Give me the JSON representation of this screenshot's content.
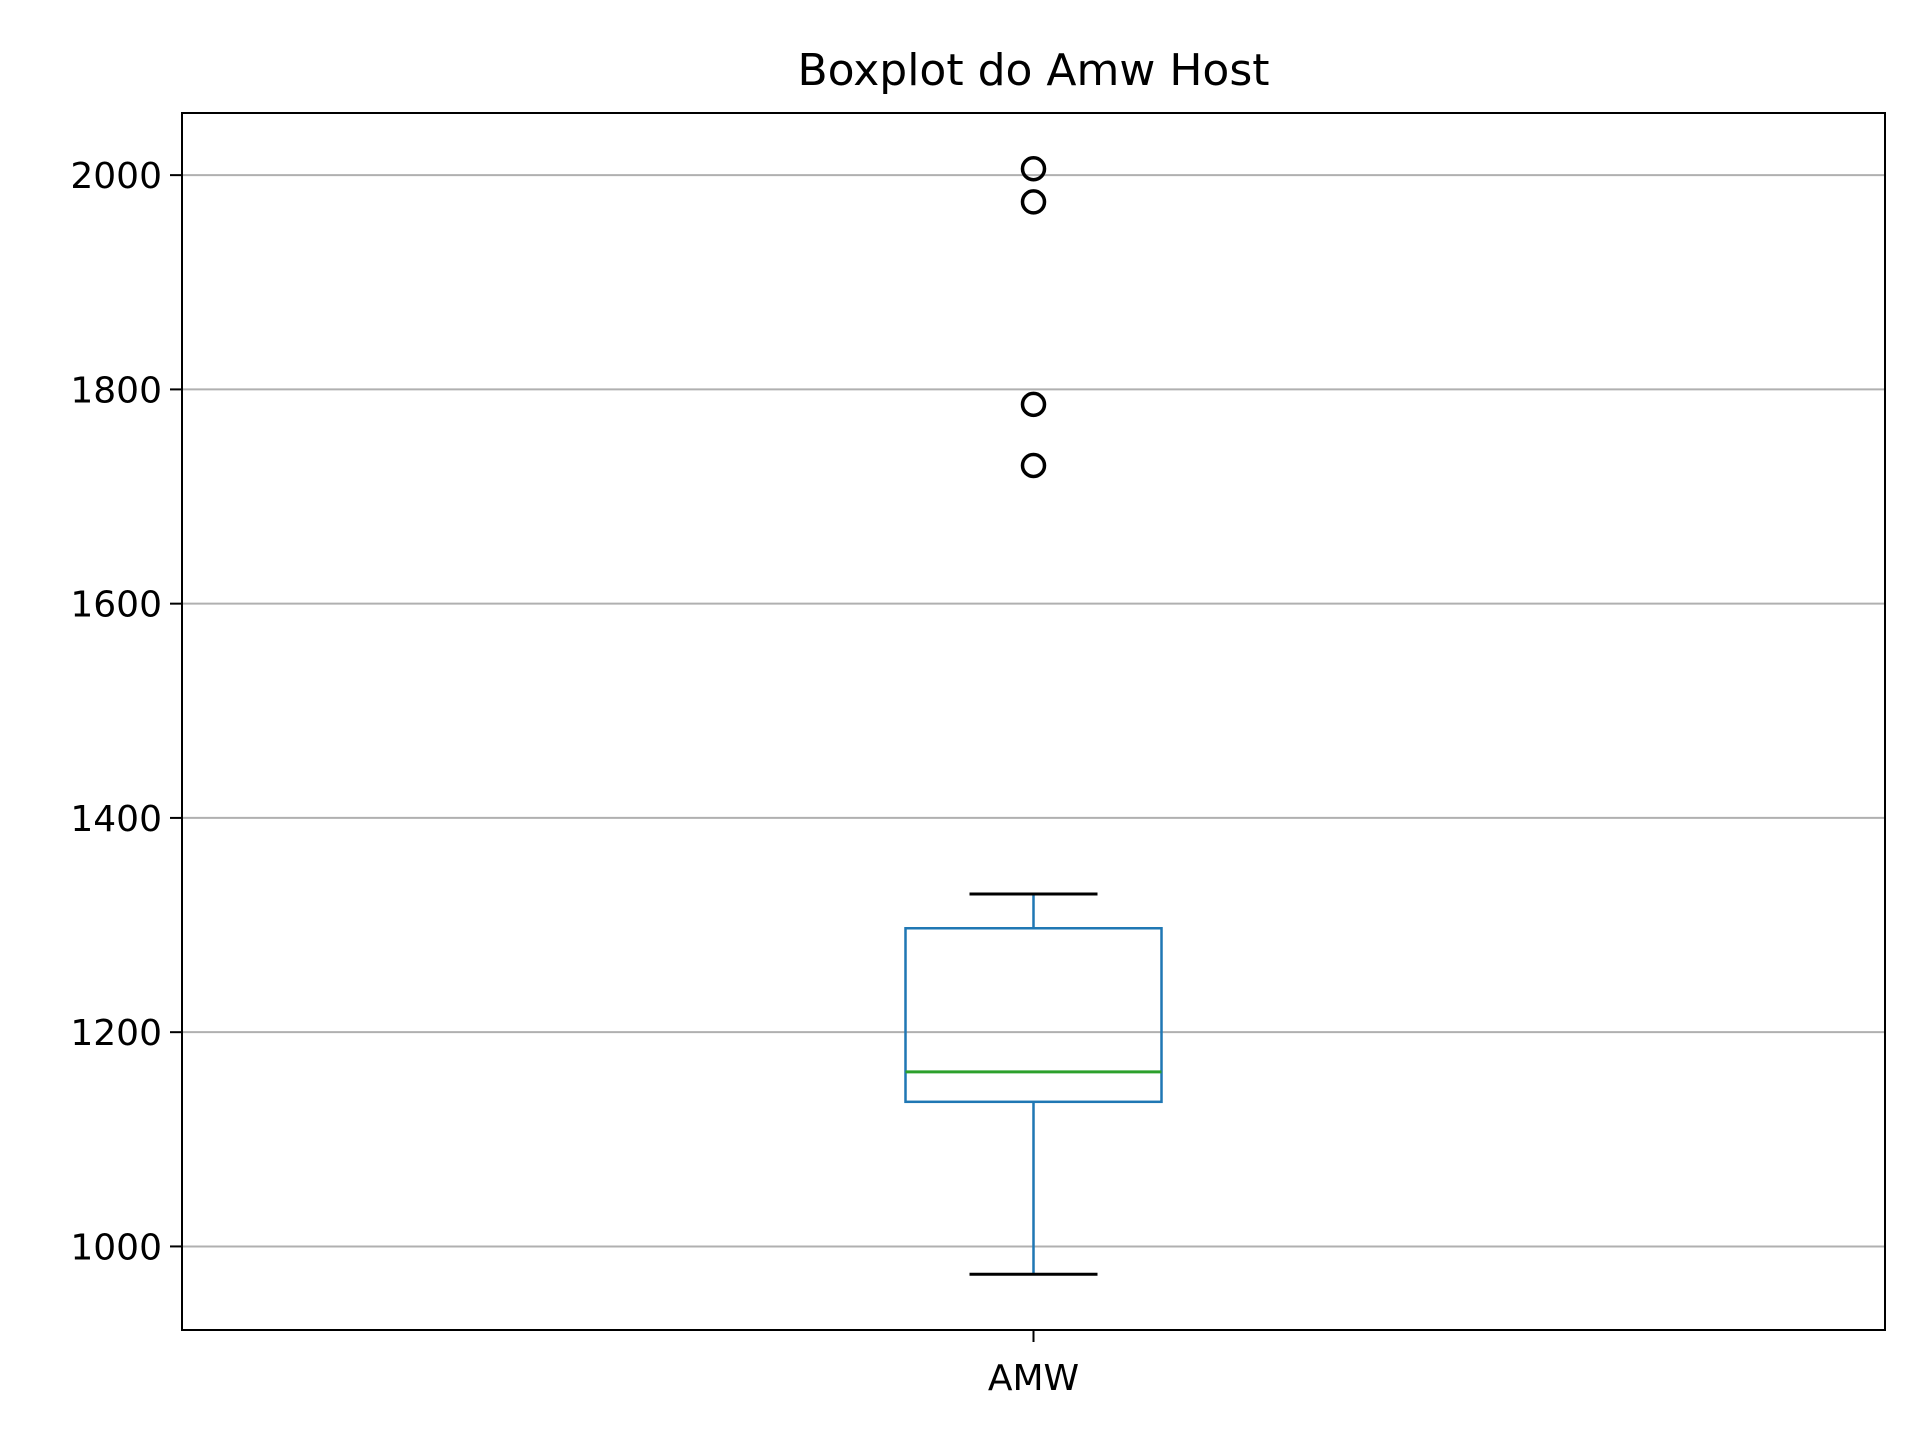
{
  "chart_data": {
    "type": "boxplot",
    "title": "Boxplot do Amw Host",
    "xlabel": "",
    "ylabel": "",
    "categories": [
      "AMW"
    ],
    "ylim": [
      922,
      2058
    ],
    "yticks": [
      1000,
      1200,
      1400,
      1600,
      1800,
      2000
    ],
    "grid": "y",
    "boxes": [
      {
        "category": "AMW",
        "whisker_low": 974,
        "q1": 1135,
        "median": 1163,
        "q3": 1297,
        "whisker_high": 1329,
        "outliers": [
          2006,
          1975,
          1786,
          1729
        ]
      }
    ],
    "colors": {
      "box": "#1f77b4",
      "median": "#2ca02c",
      "cap": "#000000",
      "grid": "#b0b0b0"
    }
  }
}
